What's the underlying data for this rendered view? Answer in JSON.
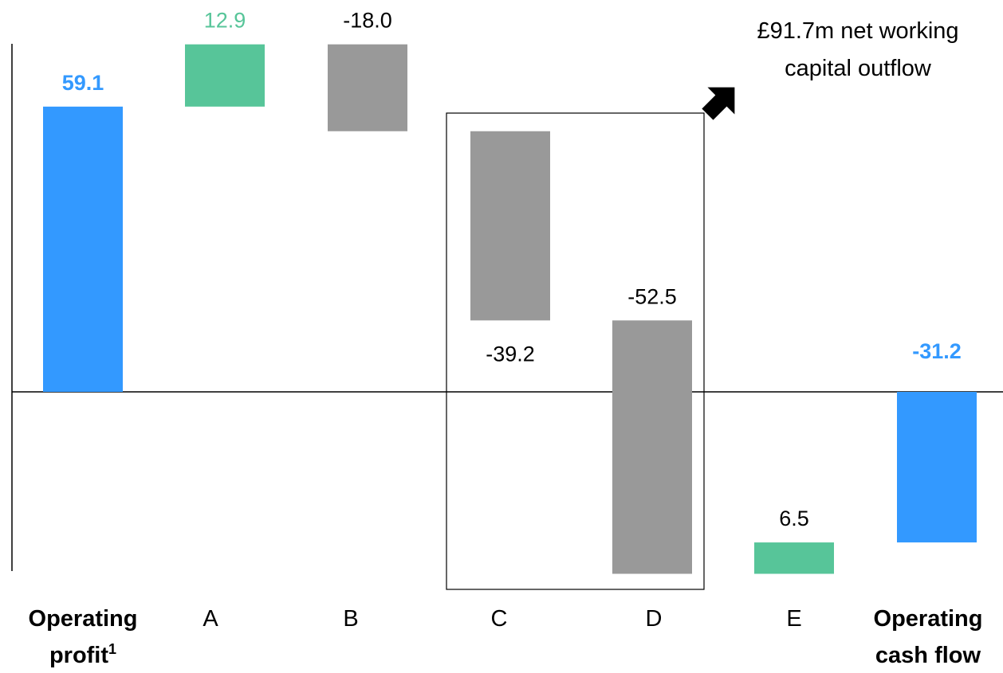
{
  "chart_data": {
    "type": "waterfall",
    "title": "",
    "xlabel": "",
    "ylabel": "",
    "ylim": [
      -39,
      84
    ],
    "grid": false,
    "categories": [
      {
        "key": "op_profit",
        "line1": "Operating",
        "line2": "profit",
        "sup": "1",
        "bold": true
      },
      {
        "key": "a",
        "line1": "A",
        "line2": "",
        "sup": "",
        "bold": false
      },
      {
        "key": "b",
        "line1": "B",
        "line2": "",
        "sup": "",
        "bold": false
      },
      {
        "key": "c",
        "line1": "C",
        "line2": "",
        "sup": "",
        "bold": false
      },
      {
        "key": "d",
        "line1": "D",
        "line2": "",
        "sup": "",
        "bold": false
      },
      {
        "key": "e",
        "line1": "E",
        "line2": "",
        "sup": "",
        "bold": false
      },
      {
        "key": "op_cash",
        "line1": "Operating",
        "line2": "cash flow",
        "sup": "",
        "bold": true
      }
    ],
    "bars": [
      {
        "category": "op_profit",
        "kind": "total",
        "start": 0,
        "end": 59.1,
        "value": 59.1,
        "label": "59.1",
        "color": "#3399ff",
        "label_color": "#3399ff",
        "label_bold": true
      },
      {
        "category": "a",
        "kind": "increase",
        "start": 59.1,
        "end": 72.0,
        "value": 12.9,
        "label": "12.9",
        "color": "#57c599",
        "label_color": "#57c599",
        "label_bold": false
      },
      {
        "category": "b",
        "kind": "decrease",
        "start": 72.0,
        "end": 54.0,
        "value": -18.0,
        "label": "-18.0",
        "color": "#999999",
        "label_color": "#000000",
        "label_bold": false
      },
      {
        "category": "c",
        "kind": "decrease",
        "start": 54.0,
        "end": 14.8,
        "value": -39.2,
        "label": "-39.2",
        "color": "#999999",
        "label_color": "#000000",
        "label_bold": false
      },
      {
        "category": "d",
        "kind": "decrease",
        "start": 14.8,
        "end": -37.7,
        "value": -52.5,
        "label": "-52.5",
        "color": "#999999",
        "label_color": "#000000",
        "label_bold": false
      },
      {
        "category": "e",
        "kind": "increase",
        "start": -37.7,
        "end": -31.2,
        "value": 6.5,
        "label": "6.5",
        "color": "#57c599",
        "label_color": "#000000",
        "label_bold": false
      },
      {
        "category": "op_cash",
        "kind": "total",
        "start": 0,
        "end": -31.2,
        "value": -31.2,
        "label": "-31.2",
        "color": "#3399ff",
        "label_color": "#3399ff",
        "label_bold": true
      }
    ],
    "annotation": {
      "line1": "£91.7m net working",
      "line2": "capital outflow",
      "encloses": [
        "c",
        "d"
      ]
    },
    "icons": [
      "arrow-up-right-icon"
    ]
  }
}
